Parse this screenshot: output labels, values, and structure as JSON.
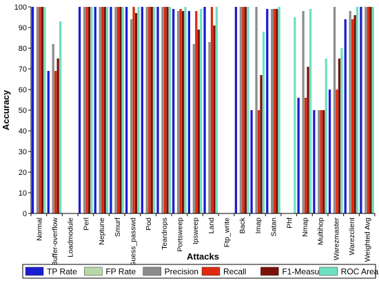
{
  "chart_data": {
    "type": "bar",
    "xlabel": "Attacks",
    "ylabel": "Accuracy",
    "ylim": [
      0,
      100
    ],
    "yticks": [
      0,
      10,
      20,
      30,
      40,
      50,
      60,
      70,
      80,
      90,
      100
    ],
    "grid": false,
    "legend_position": "bottom",
    "categories": [
      "Normal",
      "Buffer-overflow",
      "Loadmodule",
      "Perl",
      "Neptune",
      "Smurf",
      "Guess_passwd",
      "Pod",
      "Teardrops",
      "Portsweep",
      "Ipsweep",
      "Land",
      "Ftp_write",
      "Back",
      "Imap",
      "Satan",
      "Phf",
      "Nmap",
      "Multihop",
      "Warezmaster",
      "Warezclient",
      "Weighted Avg"
    ],
    "series": [
      {
        "name": "TP Rate",
        "color": "#1c1cd0",
        "values": [
          100,
          69,
          0,
          100,
          100,
          100,
          100,
          100,
          100,
          99,
          98,
          100,
          0,
          100,
          50,
          99,
          0,
          56,
          50,
          60,
          94,
          100
        ]
      },
      {
        "name": "FP Rate",
        "color": "#b8d8a8",
        "values": [
          0,
          0,
          0,
          0,
          0,
          0,
          0,
          0,
          0,
          0,
          0,
          0,
          0,
          0,
          0,
          0,
          0,
          0,
          0,
          0,
          0,
          0
        ]
      },
      {
        "name": "Precision",
        "color": "#8c8c8c",
        "values": [
          100,
          82,
          0,
          100,
          100,
          100,
          94,
          100,
          100,
          98,
          82,
          83,
          0,
          100,
          100,
          99,
          0,
          98,
          50,
          100,
          98,
          100
        ]
      },
      {
        "name": "Recall",
        "color": "#dd2a10",
        "values": [
          100,
          69,
          0,
          100,
          100,
          100,
          100,
          100,
          100,
          99,
          98,
          100,
          0,
          100,
          50,
          99,
          0,
          56,
          50,
          60,
          94,
          100
        ]
      },
      {
        "name": "F1-Measure",
        "color": "#7a1208",
        "values": [
          100,
          75,
          0,
          100,
          100,
          100,
          97,
          100,
          100,
          98,
          89,
          91,
          0,
          100,
          67,
          99,
          0,
          71,
          50,
          75,
          96,
          100
        ]
      },
      {
        "name": "ROC Area",
        "color": "#6ee0c0",
        "values": [
          100,
          93,
          0,
          100,
          100,
          100,
          100,
          100,
          100,
          100,
          99,
          100,
          0,
          100,
          88,
          100,
          95,
          99,
          75,
          80,
          100,
          100
        ]
      }
    ]
  }
}
